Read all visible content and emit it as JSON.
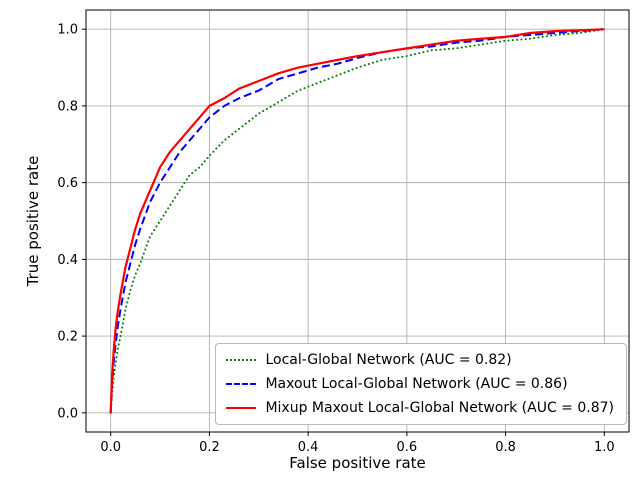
{
  "chart_data": {
    "type": "line",
    "title": "",
    "xlabel": "False positive rate",
    "ylabel": "True positive rate",
    "xlim": [
      -0.05,
      1.05
    ],
    "ylim": [
      -0.05,
      1.05
    ],
    "xticks": [
      0.0,
      0.2,
      0.4,
      0.6,
      0.8,
      1.0
    ],
    "yticks": [
      0.0,
      0.2,
      0.4,
      0.6,
      0.8,
      1.0
    ],
    "grid": true,
    "grid_color": "#b0b0b0",
    "legend_position": "lower right",
    "x": [
      0,
      0.003,
      0.006,
      0.01,
      0.015,
      0.02,
      0.03,
      0.04,
      0.05,
      0.06,
      0.08,
      0.1,
      0.12,
      0.14,
      0.16,
      0.18,
      0.2,
      0.23,
      0.26,
      0.3,
      0.34,
      0.38,
      0.42,
      0.46,
      0.5,
      0.55,
      0.6,
      0.65,
      0.7,
      0.75,
      0.8,
      0.85,
      0.9,
      0.95,
      1.0
    ],
    "series": [
      {
        "name": "Local-Global Network (AUC = 0.82)",
        "auc": 0.82,
        "color": "#008000",
        "style": "dotted",
        "y": [
          0,
          0.05,
          0.09,
          0.13,
          0.17,
          0.2,
          0.27,
          0.32,
          0.36,
          0.39,
          0.46,
          0.5,
          0.54,
          0.58,
          0.62,
          0.64,
          0.67,
          0.71,
          0.74,
          0.78,
          0.81,
          0.84,
          0.86,
          0.88,
          0.9,
          0.92,
          0.93,
          0.945,
          0.95,
          0.96,
          0.97,
          0.975,
          0.985,
          0.99,
          1.0
        ]
      },
      {
        "name": "Maxout Local-Global Network (AUC = 0.86)",
        "auc": 0.86,
        "color": "#0000ff",
        "style": "dashed",
        "y": [
          0,
          0.08,
          0.13,
          0.18,
          0.23,
          0.27,
          0.34,
          0.39,
          0.44,
          0.48,
          0.55,
          0.6,
          0.64,
          0.68,
          0.71,
          0.74,
          0.77,
          0.8,
          0.82,
          0.84,
          0.87,
          0.885,
          0.9,
          0.91,
          0.925,
          0.94,
          0.95,
          0.955,
          0.965,
          0.97,
          0.98,
          0.985,
          0.99,
          0.995,
          1.0
        ]
      },
      {
        "name": "Mixup Maxout Local-Global Network (AUC = 0.87)",
        "auc": 0.87,
        "color": "#ff0000",
        "style": "solid",
        "y": [
          0,
          0.1,
          0.16,
          0.22,
          0.27,
          0.31,
          0.38,
          0.43,
          0.48,
          0.52,
          0.58,
          0.64,
          0.68,
          0.71,
          0.74,
          0.77,
          0.8,
          0.82,
          0.845,
          0.865,
          0.885,
          0.9,
          0.91,
          0.92,
          0.93,
          0.94,
          0.95,
          0.96,
          0.97,
          0.975,
          0.98,
          0.99,
          0.995,
          0.997,
          1.0
        ]
      }
    ]
  }
}
